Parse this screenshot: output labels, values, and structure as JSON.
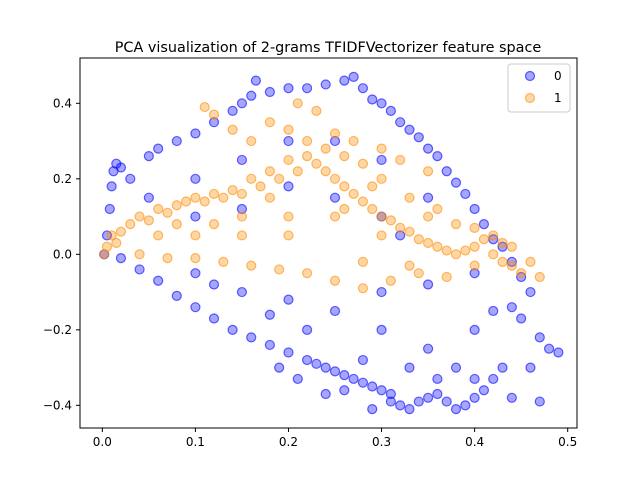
{
  "chart_data": {
    "type": "scatter",
    "title": "PCA visualization of 2-grams TFIDFVectorizer feature space",
    "xlabel": "",
    "ylabel": "",
    "xlim": [
      -0.024,
      0.51
    ],
    "ylim": [
      -0.46,
      0.52
    ],
    "xticks": [
      0.0,
      0.1,
      0.2,
      0.3,
      0.4,
      0.5
    ],
    "xtick_labels": [
      "0.0",
      "0.1",
      "0.2",
      "0.3",
      "0.4",
      "0.5"
    ],
    "yticks": [
      -0.4,
      -0.2,
      0.0,
      0.2,
      0.4
    ],
    "ytick_labels": [
      "−0.4",
      "−0.2",
      "0.0",
      "0.2",
      "0.4"
    ],
    "grid": false,
    "legend_position": "upper right",
    "series": [
      {
        "name": "0",
        "color": "#0000ff",
        "alpha": 0.35,
        "points": [
          [
            0.002,
            0.0
          ],
          [
            0.005,
            0.05
          ],
          [
            0.008,
            0.12
          ],
          [
            0.01,
            0.18
          ],
          [
            0.012,
            0.22
          ],
          [
            0.015,
            0.24
          ],
          [
            0.02,
            0.23
          ],
          [
            0.03,
            0.2
          ],
          [
            0.05,
            0.26
          ],
          [
            0.06,
            0.28
          ],
          [
            0.08,
            0.3
          ],
          [
            0.1,
            0.32
          ],
          [
            0.12,
            0.35
          ],
          [
            0.14,
            0.38
          ],
          [
            0.15,
            0.4
          ],
          [
            0.16,
            0.42
          ],
          [
            0.165,
            0.46
          ],
          [
            0.18,
            0.43
          ],
          [
            0.2,
            0.44
          ],
          [
            0.22,
            0.44
          ],
          [
            0.24,
            0.45
          ],
          [
            0.26,
            0.46
          ],
          [
            0.27,
            0.47
          ],
          [
            0.28,
            0.44
          ],
          [
            0.29,
            0.41
          ],
          [
            0.3,
            0.4
          ],
          [
            0.31,
            0.38
          ],
          [
            0.32,
            0.35
          ],
          [
            0.33,
            0.33
          ],
          [
            0.34,
            0.31
          ],
          [
            0.35,
            0.28
          ],
          [
            0.36,
            0.26
          ],
          [
            0.37,
            0.22
          ],
          [
            0.38,
            0.19
          ],
          [
            0.39,
            0.16
          ],
          [
            0.4,
            0.12
          ],
          [
            0.41,
            0.08
          ],
          [
            0.42,
            0.04
          ],
          [
            0.43,
            0.02
          ],
          [
            0.44,
            -0.02
          ],
          [
            0.45,
            -0.06
          ],
          [
            0.46,
            -0.1
          ],
          [
            0.44,
            -0.14
          ],
          [
            0.45,
            -0.17
          ],
          [
            0.47,
            -0.22
          ],
          [
            0.48,
            -0.25
          ],
          [
            0.49,
            -0.26
          ],
          [
            0.46,
            -0.3
          ],
          [
            0.47,
            -0.39
          ],
          [
            0.44,
            -0.38
          ],
          [
            0.43,
            -0.3
          ],
          [
            0.42,
            -0.33
          ],
          [
            0.41,
            -0.36
          ],
          [
            0.4,
            -0.38
          ],
          [
            0.39,
            -0.4
          ],
          [
            0.38,
            -0.41
          ],
          [
            0.37,
            -0.39
          ],
          [
            0.36,
            -0.37
          ],
          [
            0.35,
            -0.38
          ],
          [
            0.34,
            -0.39
          ],
          [
            0.33,
            -0.41
          ],
          [
            0.32,
            -0.4
          ],
          [
            0.31,
            -0.37
          ],
          [
            0.3,
            -0.36
          ],
          [
            0.29,
            -0.35
          ],
          [
            0.28,
            -0.34
          ],
          [
            0.27,
            -0.33
          ],
          [
            0.26,
            -0.32
          ],
          [
            0.25,
            -0.31
          ],
          [
            0.24,
            -0.3
          ],
          [
            0.23,
            -0.29
          ],
          [
            0.22,
            -0.28
          ],
          [
            0.2,
            -0.26
          ],
          [
            0.18,
            -0.24
          ],
          [
            0.16,
            -0.22
          ],
          [
            0.14,
            -0.2
          ],
          [
            0.12,
            -0.17
          ],
          [
            0.1,
            -0.14
          ],
          [
            0.08,
            -0.11
          ],
          [
            0.06,
            -0.07
          ],
          [
            0.04,
            -0.04
          ],
          [
            0.02,
            -0.01
          ],
          [
            0.1,
            0.2
          ],
          [
            0.15,
            0.25
          ],
          [
            0.2,
            0.3
          ],
          [
            0.25,
            0.3
          ],
          [
            0.3,
            0.25
          ],
          [
            0.35,
            0.15
          ],
          [
            0.3,
            0.1
          ],
          [
            0.25,
            0.15
          ],
          [
            0.2,
            0.18
          ],
          [
            0.15,
            0.12
          ],
          [
            0.1,
            0.1
          ],
          [
            0.05,
            0.15
          ],
          [
            0.1,
            -0.05
          ],
          [
            0.15,
            -0.1
          ],
          [
            0.2,
            -0.12
          ],
          [
            0.25,
            -0.15
          ],
          [
            0.3,
            -0.2
          ],
          [
            0.35,
            -0.25
          ],
          [
            0.4,
            -0.2
          ],
          [
            0.38,
            -0.3
          ],
          [
            0.33,
            -0.3
          ],
          [
            0.28,
            -0.28
          ],
          [
            0.22,
            -0.2
          ],
          [
            0.18,
            -0.16
          ],
          [
            0.12,
            -0.08
          ],
          [
            0.3,
            -0.1
          ],
          [
            0.35,
            -0.08
          ],
          [
            0.4,
            -0.05
          ],
          [
            0.42,
            -0.15
          ],
          [
            0.32,
            0.05
          ],
          [
            0.24,
            -0.37
          ],
          [
            0.29,
            -0.41
          ],
          [
            0.21,
            -0.33
          ],
          [
            0.26,
            -0.36
          ],
          [
            0.31,
            -0.39
          ],
          [
            0.19,
            -0.3
          ],
          [
            0.36,
            -0.33
          ],
          [
            0.4,
            -0.33
          ]
        ]
      },
      {
        "name": "1",
        "color": "#ff8c00",
        "alpha": 0.35,
        "points": [
          [
            0.002,
            0.0
          ],
          [
            0.005,
            0.02
          ],
          [
            0.01,
            0.05
          ],
          [
            0.015,
            0.03
          ],
          [
            0.02,
            0.06
          ],
          [
            0.03,
            0.08
          ],
          [
            0.04,
            0.1
          ],
          [
            0.05,
            0.09
          ],
          [
            0.06,
            0.12
          ],
          [
            0.07,
            0.11
          ],
          [
            0.08,
            0.13
          ],
          [
            0.09,
            0.14
          ],
          [
            0.1,
            0.15
          ],
          [
            0.11,
            0.14
          ],
          [
            0.12,
            0.16
          ],
          [
            0.13,
            0.15
          ],
          [
            0.14,
            0.17
          ],
          [
            0.15,
            0.16
          ],
          [
            0.16,
            0.2
          ],
          [
            0.17,
            0.18
          ],
          [
            0.18,
            0.22
          ],
          [
            0.19,
            0.2
          ],
          [
            0.2,
            0.25
          ],
          [
            0.21,
            0.22
          ],
          [
            0.22,
            0.26
          ],
          [
            0.23,
            0.24
          ],
          [
            0.24,
            0.22
          ],
          [
            0.25,
            0.2
          ],
          [
            0.26,
            0.18
          ],
          [
            0.27,
            0.16
          ],
          [
            0.28,
            0.14
          ],
          [
            0.29,
            0.12
          ],
          [
            0.3,
            0.1
          ],
          [
            0.31,
            0.09
          ],
          [
            0.32,
            0.07
          ],
          [
            0.33,
            0.06
          ],
          [
            0.34,
            0.04
          ],
          [
            0.35,
            0.03
          ],
          [
            0.36,
            0.02
          ],
          [
            0.37,
            0.01
          ],
          [
            0.38,
            0.0
          ],
          [
            0.39,
            0.01
          ],
          [
            0.4,
            0.02
          ],
          [
            0.41,
            0.04
          ],
          [
            0.42,
            0.0
          ],
          [
            0.43,
            -0.02
          ],
          [
            0.44,
            -0.03
          ],
          [
            0.45,
            -0.05
          ],
          [
            0.47,
            -0.06
          ],
          [
            0.46,
            -0.02
          ],
          [
            0.43,
            0.03
          ],
          [
            0.4,
            -0.03
          ],
          [
            0.37,
            -0.06
          ],
          [
            0.34,
            -0.05
          ],
          [
            0.31,
            -0.07
          ],
          [
            0.28,
            -0.09
          ],
          [
            0.25,
            -0.07
          ],
          [
            0.22,
            -0.05
          ],
          [
            0.19,
            -0.04
          ],
          [
            0.16,
            -0.03
          ],
          [
            0.13,
            -0.02
          ],
          [
            0.1,
            -0.01
          ],
          [
            0.07,
            -0.01
          ],
          [
            0.04,
            0.0
          ],
          [
            0.11,
            0.39
          ],
          [
            0.12,
            0.37
          ],
          [
            0.14,
            0.33
          ],
          [
            0.16,
            0.3
          ],
          [
            0.18,
            0.35
          ],
          [
            0.2,
            0.33
          ],
          [
            0.22,
            0.3
          ],
          [
            0.24,
            0.28
          ],
          [
            0.21,
            0.4
          ],
          [
            0.23,
            0.38
          ],
          [
            0.25,
            0.32
          ],
          [
            0.27,
            0.3
          ],
          [
            0.3,
            0.28
          ],
          [
            0.32,
            0.25
          ],
          [
            0.35,
            0.22
          ],
          [
            0.3,
            0.2
          ],
          [
            0.28,
            0.24
          ],
          [
            0.26,
            0.26
          ],
          [
            0.15,
            0.1
          ],
          [
            0.2,
            0.1
          ],
          [
            0.25,
            0.1
          ],
          [
            0.2,
            0.05
          ],
          [
            0.15,
            0.05
          ],
          [
            0.1,
            0.05
          ],
          [
            0.3,
            0.05
          ],
          [
            0.35,
            0.1
          ],
          [
            0.28,
            -0.02
          ],
          [
            0.33,
            -0.03
          ],
          [
            0.18,
            0.15
          ],
          [
            0.12,
            0.08
          ],
          [
            0.06,
            0.05
          ],
          [
            0.08,
            0.08
          ],
          [
            0.4,
            0.07
          ],
          [
            0.42,
            0.05
          ],
          [
            0.44,
            0.02
          ],
          [
            0.38,
            0.08
          ],
          [
            0.36,
            0.12
          ],
          [
            0.33,
            0.15
          ],
          [
            0.29,
            0.18
          ],
          [
            0.26,
            0.12
          ]
        ]
      }
    ]
  }
}
